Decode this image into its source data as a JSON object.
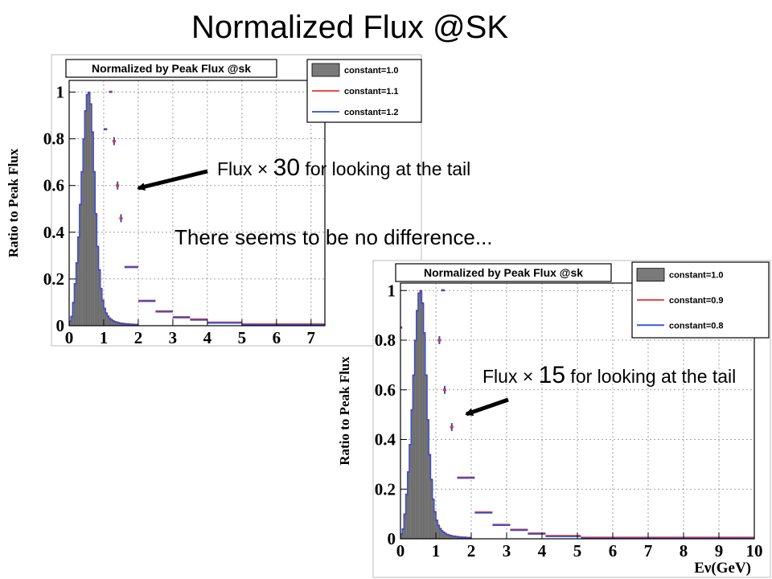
{
  "slide": {
    "title": "Normalized Flux @SK",
    "annotation_top": {
      "prefix": "Flux × ",
      "factor": "30",
      "suffix": " for looking at the tail"
    },
    "annotation_middle": "There seems to be no difference...",
    "annotation_bottom": {
      "prefix": "Flux × ",
      "factor": "15",
      "suffix": " for looking at the tail"
    }
  },
  "colors": {
    "histogram_fill": "#7a7a7a",
    "red": "#e8322a",
    "blue": "#2a4fd8",
    "frame": "#000000"
  },
  "chart_data": [
    {
      "type": "bar",
      "title": "Normalized by Peak Flux @sk",
      "ylabel": "Ratio to Peak Flux",
      "xlabel": "",
      "xlim": [
        0,
        7.4
      ],
      "ylim": [
        0,
        1.05
      ],
      "xticks": [
        "0",
        "1",
        "2",
        "3",
        "4",
        "5",
        "6",
        "7"
      ],
      "yticks": [
        "0",
        "0.2",
        "0.4",
        "0.6",
        "0.8",
        "1"
      ],
      "legend": [
        {
          "name": "constant=1.0",
          "style": "fill"
        },
        {
          "name": "constant=1.1",
          "style": "red"
        },
        {
          "name": "constant=1.2",
          "style": "blue"
        }
      ],
      "legend_position": "top-right",
      "peak_bins": {
        "x": [
          0.0,
          0.05,
          0.1,
          0.15,
          0.2,
          0.25,
          0.3,
          0.35,
          0.4,
          0.45,
          0.5,
          0.55,
          0.6,
          0.65,
          0.7,
          0.75,
          0.8,
          0.85,
          0.9,
          0.95,
          1.0,
          1.05,
          1.1,
          1.15,
          1.2,
          1.25,
          1.3,
          1.35,
          1.4,
          1.45,
          1.5,
          1.55,
          1.6,
          1.65,
          1.7,
          1.75,
          1.8,
          1.85,
          1.9,
          1.95
        ],
        "values": [
          0.02,
          0.04,
          0.1,
          0.18,
          0.27,
          0.38,
          0.52,
          0.66,
          0.8,
          0.92,
          0.99,
          1.0,
          0.95,
          0.83,
          0.66,
          0.48,
          0.34,
          0.24,
          0.16,
          0.11,
          0.075,
          0.055,
          0.042,
          0.033,
          0.027,
          0.022,
          0.018,
          0.016,
          0.014,
          0.012,
          0.011,
          0.01,
          0.009,
          0.008,
          0.008,
          0.007,
          0.007,
          0.006,
          0.006,
          0.006
        ]
      },
      "tail_points": {
        "x": [
          1.3,
          1.4,
          1.5
        ],
        "values": [
          0.79,
          0.6,
          0.46
        ]
      },
      "tail_steps": [
        {
          "x0": 1.15,
          "x1": 1.25,
          "value": 1.0
        },
        {
          "x0": 1.0,
          "x1": 1.1,
          "value": 0.84
        },
        {
          "x0": 1.6,
          "x1": 2.0,
          "value": 0.25
        },
        {
          "x0": 2.0,
          "x1": 2.5,
          "value": 0.105
        },
        {
          "x0": 2.5,
          "x1": 3.0,
          "value": 0.06
        },
        {
          "x0": 3.0,
          "x1": 3.5,
          "value": 0.035
        },
        {
          "x0": 3.5,
          "x1": 4.0,
          "value": 0.025
        },
        {
          "x0": 4.0,
          "x1": 5.0,
          "value": 0.012
        },
        {
          "x0": 5.0,
          "x1": 7.4,
          "value": 0.004
        }
      ]
    },
    {
      "type": "bar",
      "title": "Normalized by Peak Flux @sk",
      "ylabel": "Ratio to Peak Flux",
      "xlabel": "Eν(GeV)",
      "xlim": [
        0,
        10
      ],
      "ylim": [
        0,
        1.03
      ],
      "xticks": [
        "0",
        "1",
        "2",
        "3",
        "4",
        "5",
        "6",
        "7",
        "8",
        "9",
        "10"
      ],
      "yticks": [
        "0",
        "0.2",
        "0.4",
        "0.6",
        "0.8",
        "1"
      ],
      "legend": [
        {
          "name": "constant=1.0",
          "style": "fill"
        },
        {
          "name": "constant=0.9",
          "style": "red"
        },
        {
          "name": "constant=0.8",
          "style": "blue"
        }
      ],
      "legend_position": "top-right",
      "peak_bins": {
        "x": [
          0.0,
          0.05,
          0.1,
          0.15,
          0.2,
          0.25,
          0.3,
          0.35,
          0.4,
          0.45,
          0.5,
          0.55,
          0.6,
          0.65,
          0.7,
          0.75,
          0.8,
          0.85,
          0.9,
          0.95,
          1.0,
          1.05,
          1.1,
          1.15,
          1.2,
          1.25,
          1.3,
          1.35,
          1.4,
          1.45,
          1.5,
          1.55,
          1.6,
          1.65,
          1.7,
          1.75,
          1.8,
          1.85,
          1.9,
          1.95
        ],
        "values": [
          0.02,
          0.04,
          0.1,
          0.18,
          0.27,
          0.38,
          0.52,
          0.66,
          0.8,
          0.92,
          0.99,
          1.0,
          0.95,
          0.83,
          0.66,
          0.48,
          0.34,
          0.24,
          0.16,
          0.11,
          0.075,
          0.055,
          0.042,
          0.033,
          0.027,
          0.022,
          0.018,
          0.016,
          0.014,
          0.012,
          0.011,
          0.01,
          0.009,
          0.008,
          0.008,
          0.007,
          0.007,
          0.006,
          0.006,
          0.006
        ]
      },
      "tail_points": {
        "x": [
          1.1,
          1.25,
          1.45
        ],
        "values": [
          0.8,
          0.6,
          0.45
        ]
      },
      "tail_steps": [
        {
          "x0": 0.0,
          "x1": 0.05,
          "value": 0.85
        },
        {
          "x0": 1.15,
          "x1": 1.25,
          "value": 1.0
        },
        {
          "x0": 1.6,
          "x1": 2.1,
          "value": 0.245
        },
        {
          "x0": 2.1,
          "x1": 2.6,
          "value": 0.105
        },
        {
          "x0": 2.6,
          "x1": 3.1,
          "value": 0.055
        },
        {
          "x0": 3.1,
          "x1": 3.6,
          "value": 0.035
        },
        {
          "x0": 3.6,
          "x1": 4.1,
          "value": 0.02
        },
        {
          "x0": 4.1,
          "x1": 5.1,
          "value": 0.01
        },
        {
          "x0": 5.1,
          "x1": 10.0,
          "value": 0.003
        }
      ]
    }
  ]
}
